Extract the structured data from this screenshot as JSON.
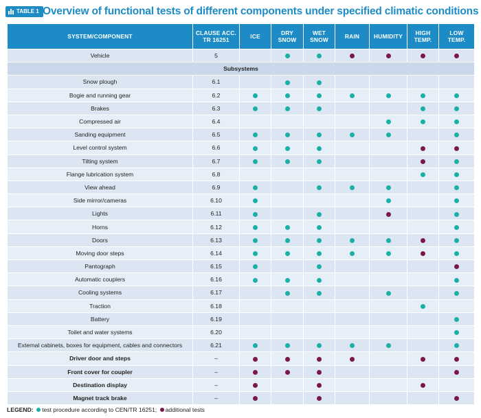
{
  "header": {
    "badge": "TABLE 1",
    "title": "Overview of functional tests of different components under specified climatic conditions"
  },
  "columns": [
    "SYSTEM/COMPONENT",
    "CLAUSE ACC. TR 16251",
    "ICE",
    "DRY SNOW",
    "WET SNOW",
    "RAIN",
    "HUMIDITY",
    "HIGH TEMP.",
    "LOW TEMP."
  ],
  "column_lines": [
    [
      "SYSTEM/COMPONENT"
    ],
    [
      "CLAUSE ACC.",
      "TR 16251"
    ],
    [
      "ICE"
    ],
    [
      "DRY",
      "SNOW"
    ],
    [
      "WET",
      "SNOW"
    ],
    [
      "RAIN"
    ],
    [
      "HUMIDITY"
    ],
    [
      "HIGH",
      "TEMP."
    ],
    [
      "LOW",
      "TEMP."
    ]
  ],
  "marker_legend": {
    "t": "test procedure according to CEN/TR 16251",
    "a": "additional tests"
  },
  "rows": [
    {
      "name": "Vehicle",
      "clause": "5",
      "marks": [
        "",
        "t",
        "t",
        "a",
        "a",
        "a",
        "a"
      ]
    },
    {
      "name": "Subsystems",
      "section": true
    },
    {
      "name": "Snow plough",
      "clause": "6.1",
      "marks": [
        "",
        "t",
        "t",
        "",
        "",
        "",
        ""
      ]
    },
    {
      "name": "Bogie and running gear",
      "clause": "6.2",
      "marks": [
        "t",
        "t",
        "t",
        "t",
        "t",
        "t",
        "t"
      ]
    },
    {
      "name": "Brakes",
      "clause": "6.3",
      "marks": [
        "t",
        "t",
        "t",
        "",
        "",
        "t",
        "t"
      ]
    },
    {
      "name": "Compressed air",
      "clause": "6.4",
      "marks": [
        "",
        "",
        "",
        "",
        "t",
        "t",
        "t"
      ]
    },
    {
      "name": "Sanding equipment",
      "clause": "6.5",
      "marks": [
        "t",
        "t",
        "t",
        "t",
        "t",
        "",
        "t"
      ]
    },
    {
      "name": "Level control system",
      "clause": "6.6",
      "marks": [
        "t",
        "t",
        "t",
        "",
        "",
        "a",
        "a"
      ]
    },
    {
      "name": "Tilting system",
      "clause": "6.7",
      "marks": [
        "t",
        "t",
        "t",
        "",
        "",
        "a",
        "t"
      ]
    },
    {
      "name": "Flange lubrication system",
      "clause": "6.8",
      "marks": [
        "",
        "",
        "",
        "",
        "",
        "t",
        "t"
      ]
    },
    {
      "name": "View ahead",
      "clause": "6.9",
      "marks": [
        "t",
        "",
        "t",
        "t",
        "t",
        "",
        "t"
      ]
    },
    {
      "name": "Side mirror/cameras",
      "clause": "6.10",
      "marks": [
        "t",
        "",
        "",
        "",
        "t",
        "",
        "t"
      ]
    },
    {
      "name": "Lights",
      "clause": "6.11",
      "marks": [
        "t",
        "",
        "t",
        "",
        "a",
        "",
        "t"
      ]
    },
    {
      "name": "Horns",
      "clause": "6.12",
      "marks": [
        "t",
        "t",
        "t",
        "",
        "",
        "",
        "t"
      ]
    },
    {
      "name": "Doors",
      "clause": "6.13",
      "marks": [
        "t",
        "t",
        "t",
        "t",
        "t",
        "a",
        "t"
      ]
    },
    {
      "name": "Moving door steps",
      "clause": "6.14",
      "marks": [
        "t",
        "t",
        "t",
        "t",
        "t",
        "a",
        "t"
      ]
    },
    {
      "name": "Pantograph",
      "clause": "6.15",
      "marks": [
        "t",
        "",
        "t",
        "",
        "",
        "",
        "a"
      ]
    },
    {
      "name": "Automatic couplers",
      "clause": "6.16",
      "marks": [
        "t",
        "t",
        "t",
        "",
        "",
        "",
        "t"
      ]
    },
    {
      "name": "Cooling systems",
      "clause": "6.17",
      "marks": [
        "",
        "t",
        "t",
        "",
        "t",
        "",
        "t"
      ]
    },
    {
      "name": "Traction",
      "clause": "6.18",
      "marks": [
        "",
        "",
        "",
        "",
        "",
        "t",
        ""
      ]
    },
    {
      "name": "Battery",
      "clause": "6.19",
      "marks": [
        "",
        "",
        "",
        "",
        "",
        "",
        "t"
      ]
    },
    {
      "name": "Toilet and water systems",
      "clause": "6.20",
      "marks": [
        "",
        "",
        "",
        "",
        "",
        "",
        "t"
      ]
    },
    {
      "name": "External cabinets, boxes for equipment, cables and connectors",
      "clause": "6.21",
      "marks": [
        "t",
        "t",
        "t",
        "t",
        "t",
        "",
        "t"
      ]
    },
    {
      "name": "Driver door and steps",
      "clause": "–",
      "bold": true,
      "marks": [
        "a",
        "a",
        "a",
        "a",
        "",
        "a",
        "a"
      ]
    },
    {
      "name": "Front cover for coupler",
      "clause": "–",
      "bold": true,
      "marks": [
        "a",
        "a",
        "a",
        "",
        "",
        "",
        "a"
      ]
    },
    {
      "name": "Destination display",
      "clause": "–",
      "bold": true,
      "marks": [
        "a",
        "",
        "a",
        "",
        "",
        "a",
        ""
      ]
    },
    {
      "name": "Magnet track brake",
      "clause": "–",
      "bold": true,
      "marks": [
        "a",
        "",
        "a",
        "",
        "",
        "",
        "a"
      ]
    }
  ],
  "legend": {
    "label": "LEGEND:",
    "test_text": "test procedure according to CEN/TR 16251;",
    "additional_text": "additional tests"
  },
  "colors": {
    "accent": "#1d8cc6",
    "test_dot": "#1ab0a6",
    "additional_dot": "#7a1848"
  }
}
